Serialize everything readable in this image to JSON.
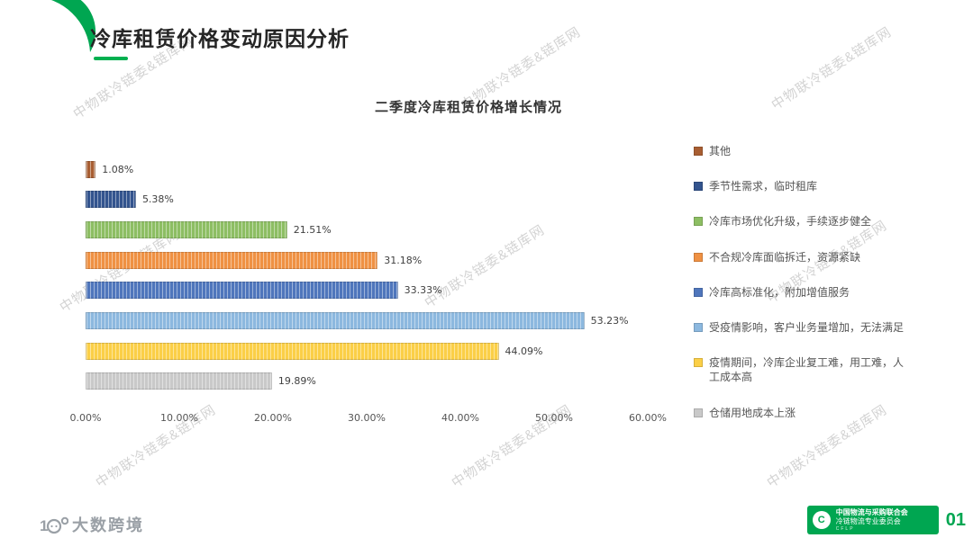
{
  "page": {
    "title": "冷库租赁价格变动原因分析",
    "page_number": "01"
  },
  "watermark": {
    "text": "中物联冷链委&链库网"
  },
  "footer": {
    "brand": "大数跨境",
    "org_line1": "中国物流与采购联合会",
    "org_line2": "冷链物流专业委员会",
    "org_sub": "CFLP"
  },
  "chart_data": {
    "type": "bar",
    "orientation": "horizontal",
    "title": "二季度冷库租赁价格增长情况",
    "categories": [
      "其他",
      "季节性需求，临时租库",
      "冷库市场优化升级，手续逐步健全",
      "不合规冷库面临拆迁，资源紧缺",
      "冷库高标准化，附加增值服务",
      "受疫情影响，客户业务量增加，无法满足",
      "疫情期间，冷库企业复工难，用工难，人工成本高",
      "仓储用地成本上涨"
    ],
    "values": [
      1.08,
      5.38,
      21.51,
      31.18,
      33.33,
      53.23,
      44.09,
      19.89
    ],
    "value_labels": [
      "1.08%",
      "5.38%",
      "21.51%",
      "31.18%",
      "33.33%",
      "53.23%",
      "44.09%",
      "19.89%"
    ],
    "colors": [
      "#A85E32",
      "#33548E",
      "#8DBE63",
      "#EF9143",
      "#4F76BC",
      "#8CB8DF",
      "#FBCF47",
      "#C9C9C9"
    ],
    "x_ticks": [
      "0.00%",
      "10.00%",
      "20.00%",
      "30.00%",
      "40.00%",
      "50.00%",
      "60.00%"
    ],
    "xlim": [
      0,
      60
    ],
    "grid": false,
    "legend_position": "right"
  }
}
